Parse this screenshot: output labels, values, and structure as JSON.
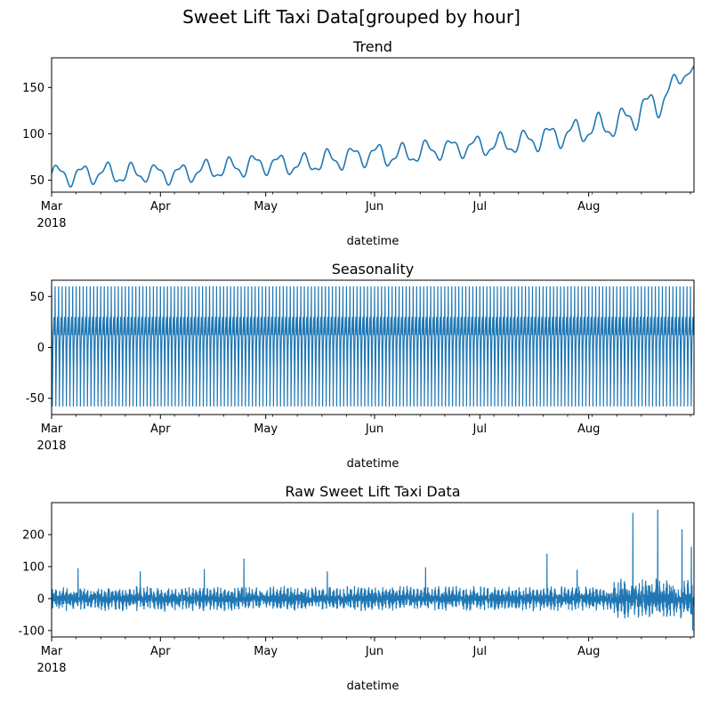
{
  "figure": {
    "suptitle": "Sweet Lift Taxi Data[grouped by hour]"
  },
  "colors": {
    "line": "#1f77b4",
    "axis": "#000000",
    "background": "#ffffff"
  },
  "chart_data": [
    {
      "type": "line",
      "title": "Trend",
      "xlabel": "datetime",
      "ylabel": "",
      "xlim": [
        "2018-03-01",
        "2018-08-31"
      ],
      "ylim": [
        37,
        182
      ],
      "yticks": [
        50,
        100,
        150
      ],
      "xtick_labels": [
        "Mar",
        "Apr",
        "May",
        "Jun",
        "Jul",
        "Aug"
      ],
      "xtick_year": "2018",
      "grid": false,
      "series": [
        {
          "x": [
            "2018-03-01",
            "2018-03-08",
            "2018-03-15",
            "2018-03-22",
            "2018-03-29",
            "2018-04-05",
            "2018-04-12",
            "2018-04-19",
            "2018-04-26",
            "2018-05-03",
            "2018-05-10",
            "2018-05-17",
            "2018-05-24",
            "2018-05-31",
            "2018-06-07",
            "2018-06-14",
            "2018-06-21",
            "2018-06-28",
            "2018-07-05",
            "2018-07-12",
            "2018-07-19",
            "2018-07-26",
            "2018-08-02",
            "2018-08-09",
            "2018-08-16",
            "2018-08-23",
            "2018-08-28",
            "2018-08-31"
          ],
          "values": [
            57,
            55,
            58,
            56,
            58,
            56,
            60,
            62,
            66,
            68,
            66,
            70,
            74,
            78,
            76,
            80,
            84,
            86,
            88,
            90,
            96,
            100,
            106,
            110,
            125,
            140,
            165,
            170
          ],
          "amplitude": [
            8,
            10,
            9,
            10,
            8,
            9,
            9,
            9,
            10,
            9,
            9,
            10,
            10,
            10,
            10,
            10,
            9,
            9,
            10,
            10,
            11,
            11,
            12,
            12,
            14,
            14,
            6,
            4
          ]
        }
      ]
    },
    {
      "type": "line",
      "title": "Seasonality",
      "xlabel": "datetime",
      "ylabel": "",
      "xlim": [
        "2018-03-01",
        "2018-08-31"
      ],
      "ylim": [
        -66,
        66
      ],
      "yticks": [
        -50,
        0,
        50
      ],
      "xtick_labels": [
        "Mar",
        "Apr",
        "May",
        "Jun",
        "Jul",
        "Aug"
      ],
      "xtick_year": "2018",
      "grid": false,
      "series": [
        {
          "daily_cycle": [
            60,
            30,
            10,
            -10,
            -20,
            -58,
            -40,
            -30,
            -16,
            0,
            5,
            10,
            15,
            18,
            20,
            25,
            28,
            30,
            25,
            20,
            15,
            12,
            20,
            35
          ]
        }
      ]
    },
    {
      "type": "line",
      "title": "Raw Sweet Lift Taxi Data",
      "xlabel": "datetime",
      "ylabel": "",
      "xlim": [
        "2018-03-01",
        "2018-08-31"
      ],
      "ylim": [
        -120,
        300
      ],
      "yticks": [
        -100,
        0,
        100,
        200
      ],
      "xtick_labels": [
        "Mar",
        "Apr",
        "May",
        "Jun",
        "Jul",
        "Aug"
      ],
      "xtick_year": "2018",
      "grid": false,
      "series": [
        {
          "base_range": [
            -40,
            40
          ],
          "spikes": [
            {
              "x": "2018-03-08",
              "value": 95
            },
            {
              "x": "2018-03-26",
              "value": 85
            },
            {
              "x": "2018-04-13",
              "value": 92
            },
            {
              "x": "2018-04-24",
              "value": 125
            },
            {
              "x": "2018-05-18",
              "value": 85
            },
            {
              "x": "2018-06-15",
              "value": 98
            },
            {
              "x": "2018-07-20",
              "value": 140
            },
            {
              "x": "2018-07-28",
              "value": 90
            },
            {
              "x": "2018-08-13",
              "value": 268
            },
            {
              "x": "2018-08-20",
              "value": 278
            },
            {
              "x": "2018-08-27",
              "value": 217
            },
            {
              "x": "2018-08-30",
              "value": 162
            },
            {
              "x": "2018-08-30",
              "value": -100
            }
          ]
        }
      ]
    }
  ]
}
